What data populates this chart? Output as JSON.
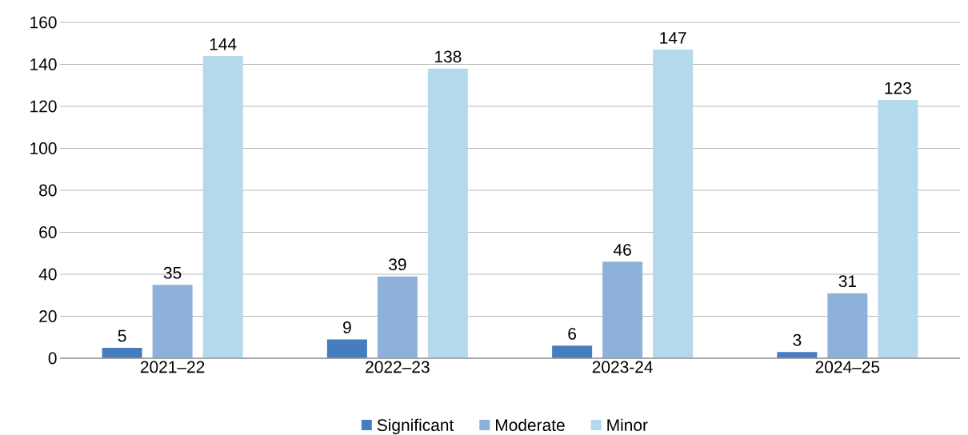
{
  "chart_data": {
    "type": "bar",
    "categories": [
      "2021–22",
      "2022–23",
      "2023-24",
      "2024–25"
    ],
    "series": [
      {
        "name": "Significant",
        "color": "#467dbf",
        "values": [
          5,
          9,
          6,
          3
        ]
      },
      {
        "name": "Moderate",
        "color": "#8eb1d9",
        "values": [
          35,
          39,
          46,
          31
        ]
      },
      {
        "name": "Minor",
        "color": "#b4d9eb",
        "values": [
          144,
          138,
          147,
          123
        ]
      }
    ],
    "ylim": [
      0,
      160
    ],
    "yticks": [
      0,
      20,
      40,
      60,
      80,
      100,
      120,
      140,
      160
    ],
    "grid": "y",
    "legend": "bottom",
    "data_labels": true
  }
}
